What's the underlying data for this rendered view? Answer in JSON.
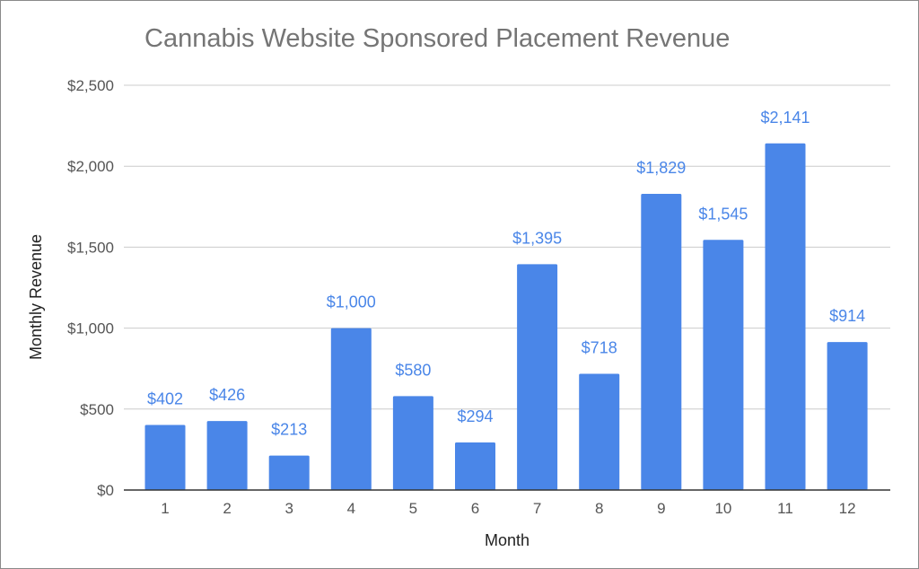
{
  "chart_data": {
    "type": "bar",
    "title": "Cannabis Website Sponsored Placement Revenue",
    "xlabel": "Month",
    "ylabel": "Monthly Revenue",
    "categories": [
      "1",
      "2",
      "3",
      "4",
      "5",
      "6",
      "7",
      "8",
      "9",
      "10",
      "11",
      "12"
    ],
    "values": [
      402,
      426,
      213,
      1000,
      580,
      294,
      1395,
      718,
      1829,
      1545,
      2141,
      914
    ],
    "data_labels": [
      "$402",
      "$426",
      "$213",
      "$1,000",
      "$580",
      "$294",
      "$1,395",
      "$718",
      "$1,829",
      "$1,545",
      "$2,141",
      "$914"
    ],
    "y_ticks": [
      0,
      500,
      1000,
      1500,
      2000,
      2500
    ],
    "y_tick_labels": [
      "$0",
      "$500",
      "$1,000",
      "$1,500",
      "$2,000",
      "$2,500"
    ],
    "ylim": [
      0,
      2500
    ],
    "grid": true,
    "legend": "none",
    "bar_color": "#4a86e8",
    "label_color": "#4a86e8",
    "grid_color": "#cccccc",
    "axis_color": "#333333"
  }
}
